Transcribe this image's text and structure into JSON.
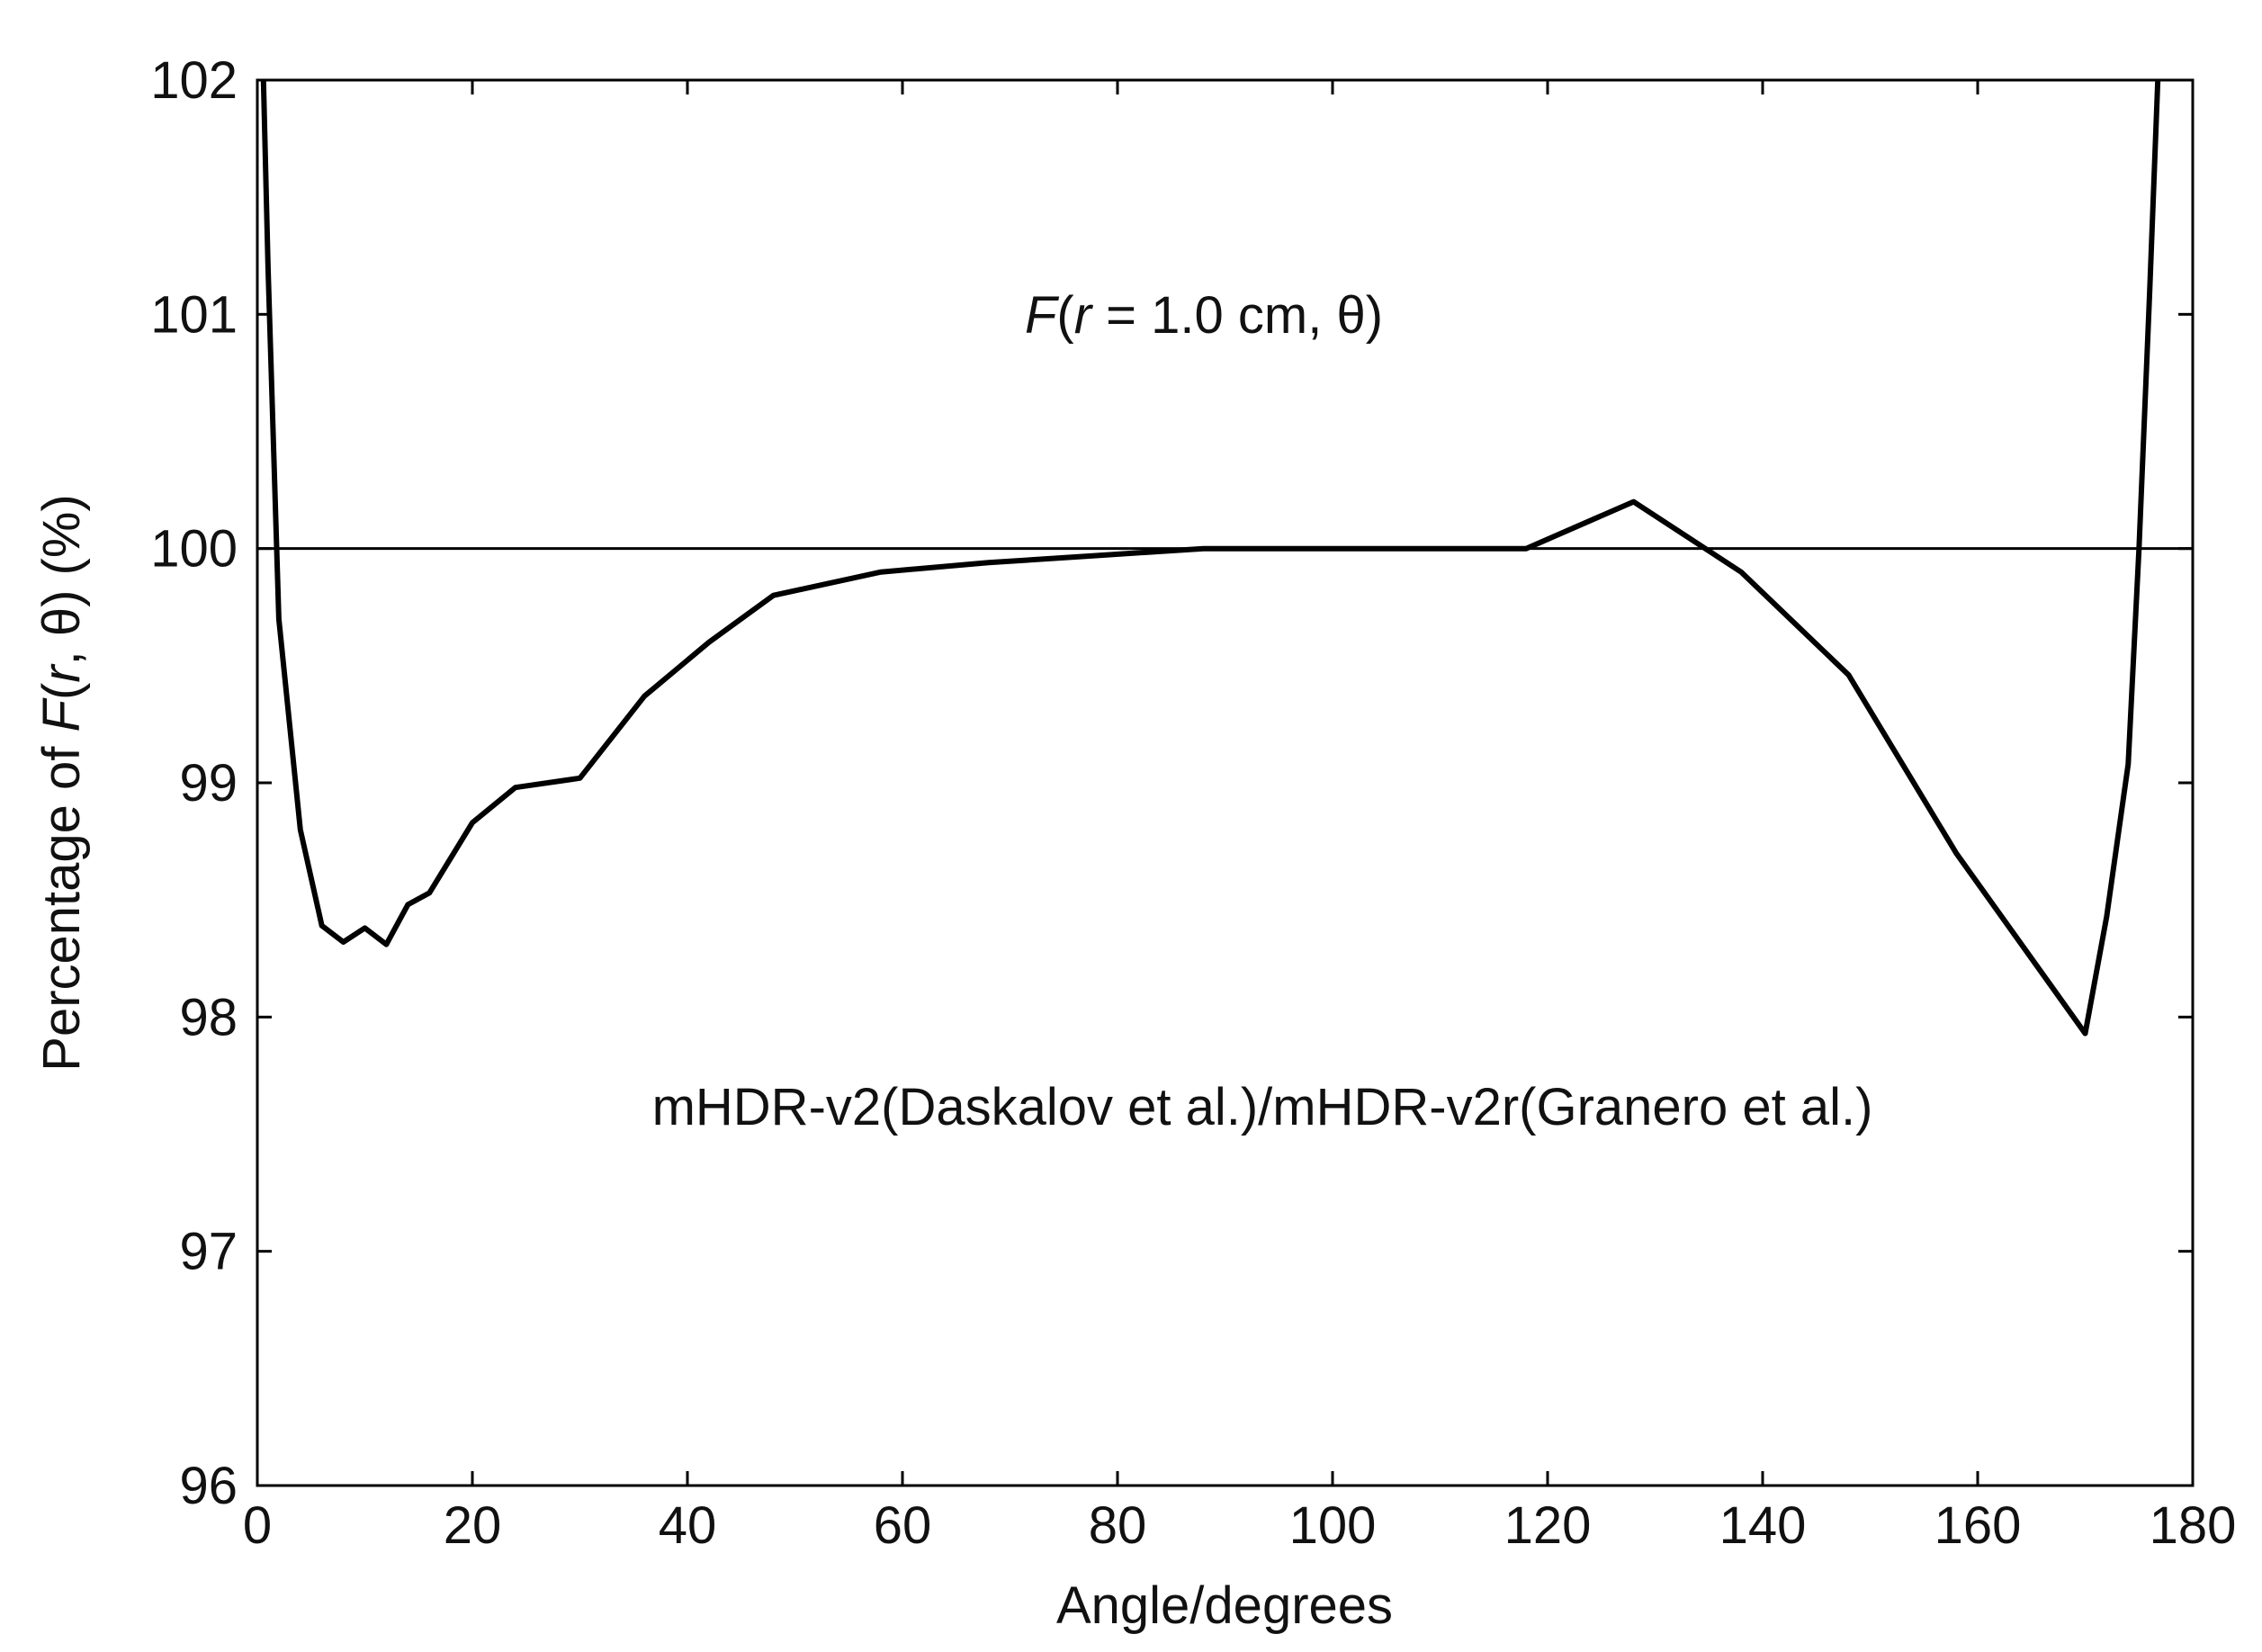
{
  "chart_data": {
    "type": "line",
    "xlabel": "Angle/degrees",
    "ylabel": "Percentage of F(r, θ) (%)",
    "ylabel_parts": {
      "pre": "Percentage of ",
      "f": "F",
      "open": "(",
      "r": "r",
      "rest": ", θ) (%)"
    },
    "xlim": [
      0,
      180
    ],
    "ylim": [
      96,
      102
    ],
    "xticks": [
      "0",
      "20",
      "40",
      "60",
      "80",
      "100",
      "120",
      "140",
      "160",
      "180"
    ],
    "yticks": [
      "96",
      "97",
      "98",
      "99",
      "100",
      "101",
      "102"
    ],
    "grid": false,
    "legend": "none",
    "reference_line": {
      "y": 100
    },
    "annotations": {
      "top": {
        "f": "F",
        "open": "(",
        "r": "r",
        "rest": " = 1.0 cm, θ)"
      },
      "bottom": "mHDR-v2(Daskalov et al.)/mHDR-v2r(Granero et al.)"
    },
    "series": [
      {
        "x": [
          0.3,
          1,
          2,
          4,
          6,
          8,
          10,
          12,
          14,
          16,
          20,
          24,
          30,
          36,
          42,
          48,
          58,
          68,
          78,
          88,
          98,
          108,
          118,
          128,
          138,
          148,
          158,
          170,
          172,
          174,
          175,
          176,
          177
        ],
        "y": [
          102.5,
          101.2,
          99.7,
          98.8,
          98.39,
          98.32,
          98.38,
          98.31,
          98.48,
          98.53,
          98.83,
          98.98,
          99.02,
          99.37,
          99.6,
          99.8,
          99.9,
          99.94,
          99.97,
          100.0,
          100.0,
          100.0,
          100.0,
          100.2,
          99.9,
          99.46,
          98.7,
          97.93,
          98.43,
          99.08,
          100.0,
          101.1,
          102.3
        ]
      }
    ],
    "colors": {
      "line": "#000000",
      "axis": "#000000",
      "text": "#111111"
    }
  }
}
